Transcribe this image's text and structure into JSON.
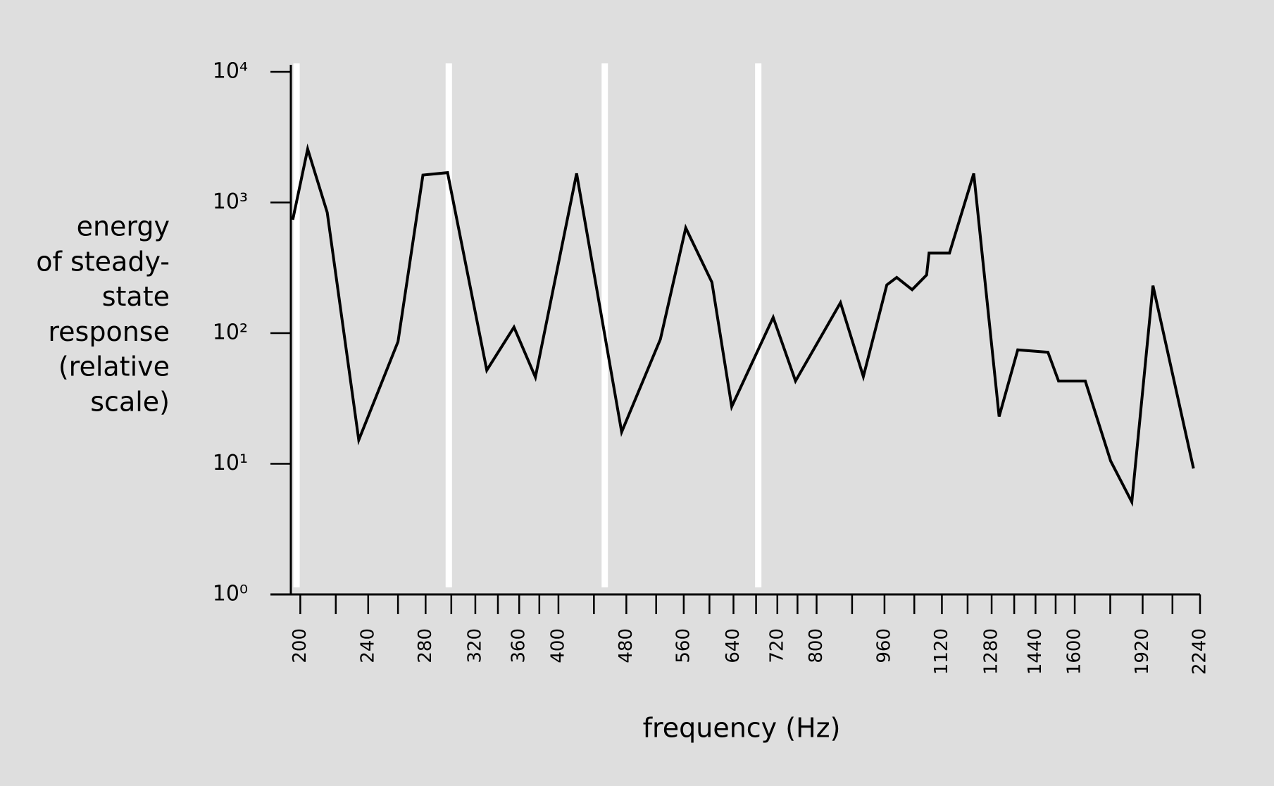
{
  "chart_data": {
    "type": "line",
    "ylabel": [
      "energy",
      "of steady-",
      "state",
      "response",
      "(relative",
      "scale)"
    ],
    "xlabel": "frequency (Hz)",
    "xscale": "log",
    "yscale": "log",
    "xlim": [
      195,
      2240
    ],
    "ylim": [
      1,
      10000
    ],
    "xticks": [
      200,
      240,
      280,
      320,
      360,
      400,
      480,
      560,
      640,
      720,
      800,
      960,
      1120,
      1280,
      1440,
      1600,
      1920,
      2240
    ],
    "xminorticks": [
      220,
      260,
      300,
      340,
      380,
      440,
      520,
      600,
      680,
      760,
      880,
      1040,
      1200,
      1360,
      1520,
      1760,
      2080
    ],
    "yticks": [
      {
        "value": 1,
        "label": "10⁰"
      },
      {
        "value": 10,
        "label": "10¹"
      },
      {
        "value": 100,
        "label": "10²"
      },
      {
        "value": 1000,
        "label": "10³"
      },
      {
        "value": 10000,
        "label": "10⁴"
      }
    ],
    "highlight_x": [
      198,
      298,
      453,
      684
    ],
    "highlight_color": "#ffffff",
    "grid": false,
    "series": [
      {
        "color": "#000000",
        "x": [
          196,
          204,
          215,
          234,
          260,
          278,
          297,
          330,
          355,
          376,
          420,
          474,
          526,
          563,
          604,
          637,
          712,
          756,
          853,
          907,
          966,
          992,
          1034,
          1075,
          1082,
          1143,
          1220,
          1306,
          1373,
          1489,
          1532,
          1646,
          1762,
          1865,
          1974,
          2201
        ],
        "values": [
          738,
          2565,
          839,
          15.2,
          86,
          1622,
          1693,
          52,
          111,
          46,
          1668,
          17.5,
          90,
          639,
          245,
          27.4,
          132,
          43,
          171,
          46.5,
          234,
          267,
          215,
          279,
          410,
          410,
          1668,
          23,
          74.5,
          71.4,
          43,
          43,
          10.5,
          5.1,
          231,
          9.2
        ]
      }
    ]
  }
}
